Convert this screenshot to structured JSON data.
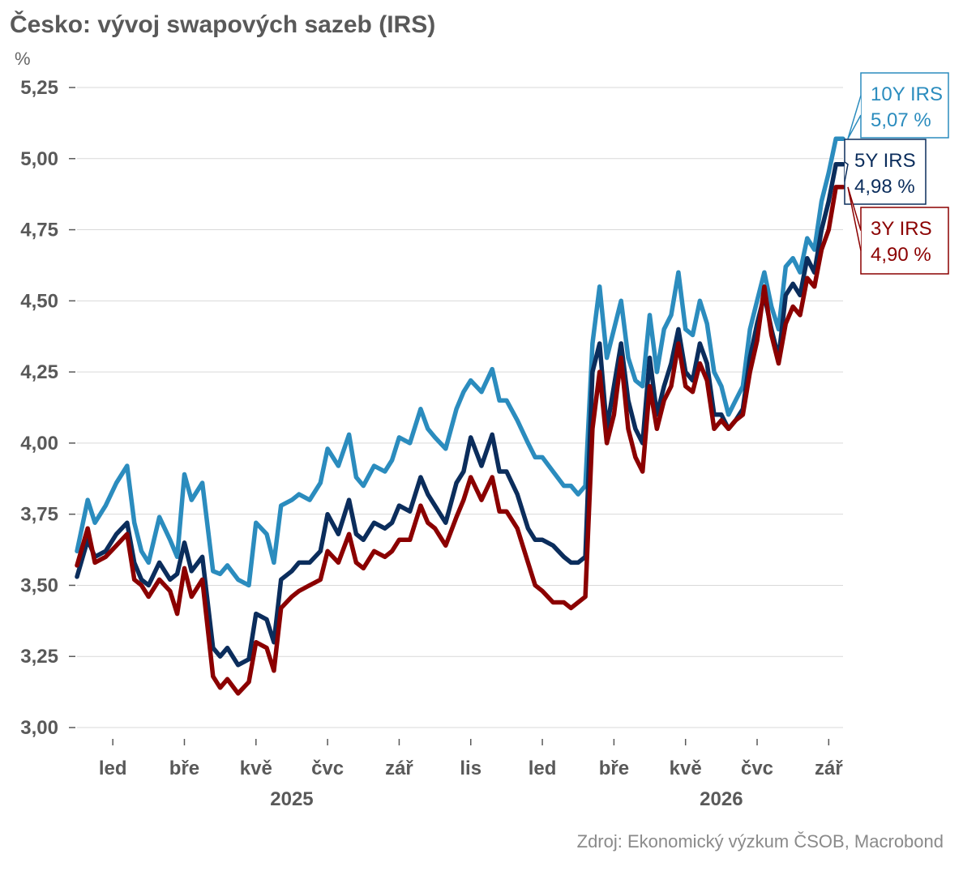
{
  "header": {
    "title": "Česko: vývoj swapových sazeb (IRS)",
    "unit": "%"
  },
  "footer": {
    "source": "Zdroj: Ekonomický výzkum ČSOB, Macrobond"
  },
  "colors": {
    "irs10": "#2b8cbe",
    "irs5": "#0b2d5c",
    "irs3": "#8b0000",
    "grid": "#d9d9d9",
    "axis": "#595959"
  },
  "chart_data": {
    "type": "line",
    "x_unit": "months since December 2024",
    "xlim": [
      0,
      21.4
    ],
    "ylim": [
      3.0,
      5.25
    ],
    "yticks": [
      3.0,
      3.25,
      3.5,
      3.75,
      4.0,
      4.25,
      4.5,
      4.75,
      5.0,
      5.25
    ],
    "ytick_labels": [
      "3,00",
      "3,25",
      "3,50",
      "3,75",
      "4,00",
      "4,25",
      "4,50",
      "4,75",
      "5,00",
      "5,25"
    ],
    "xticks": [
      {
        "x": 1.0,
        "label": "led"
      },
      {
        "x": 3.0,
        "label": "bře"
      },
      {
        "x": 5.0,
        "label": "kvě"
      },
      {
        "x": 7.0,
        "label": "čvc"
      },
      {
        "x": 9.0,
        "label": "zář"
      },
      {
        "x": 11.0,
        "label": "lis"
      },
      {
        "x": 13.0,
        "label": "led"
      },
      {
        "x": 15.0,
        "label": "bře"
      },
      {
        "x": 17.0,
        "label": "kvě"
      },
      {
        "x": 19.0,
        "label": "čvc"
      },
      {
        "x": 21.0,
        "label": "zář"
      }
    ],
    "year_labels": [
      {
        "x": 6.0,
        "label": "2025"
      },
      {
        "x": 18.0,
        "label": "2026"
      }
    ],
    "grid": true,
    "legend": "callouts at right end of lines",
    "series": [
      {
        "name": "10Y IRS",
        "label_value": "5,07 %",
        "x": [
          0.0,
          0.3,
          0.5,
          0.8,
          1.1,
          1.4,
          1.6,
          1.8,
          2.0,
          2.3,
          2.6,
          2.8,
          3.0,
          3.2,
          3.5,
          3.8,
          4.0,
          4.2,
          4.5,
          4.8,
          5.0,
          5.3,
          5.5,
          5.7,
          6.0,
          6.2,
          6.5,
          6.8,
          7.0,
          7.3,
          7.6,
          7.8,
          8.0,
          8.3,
          8.6,
          8.8,
          9.0,
          9.3,
          9.6,
          9.8,
          10.0,
          10.3,
          10.6,
          10.8,
          11.0,
          11.3,
          11.6,
          11.8,
          12.0,
          12.3,
          12.6,
          12.8,
          13.0,
          13.3,
          13.6,
          13.8,
          14.0,
          14.2,
          14.4,
          14.6,
          14.8,
          15.0,
          15.2,
          15.4,
          15.6,
          15.8,
          16.0,
          16.2,
          16.4,
          16.6,
          16.8,
          17.0,
          17.2,
          17.4,
          17.6,
          17.8,
          18.0,
          18.2,
          18.4,
          18.6,
          18.8,
          19.0,
          19.2,
          19.4,
          19.6,
          19.8,
          20.0,
          20.2,
          20.4,
          20.6,
          20.8,
          21.0,
          21.2,
          21.4
        ],
        "values": [
          3.62,
          3.8,
          3.72,
          3.78,
          3.86,
          3.92,
          3.72,
          3.62,
          3.58,
          3.74,
          3.66,
          3.6,
          3.89,
          3.8,
          3.86,
          3.55,
          3.54,
          3.57,
          3.52,
          3.5,
          3.72,
          3.68,
          3.58,
          3.78,
          3.8,
          3.82,
          3.8,
          3.86,
          3.98,
          3.92,
          4.03,
          3.88,
          3.85,
          3.92,
          3.9,
          3.94,
          4.02,
          4.0,
          4.12,
          4.05,
          4.02,
          3.98,
          4.12,
          4.18,
          4.22,
          4.18,
          4.26,
          4.15,
          4.15,
          4.08,
          4.0,
          3.95,
          3.95,
          3.9,
          3.85,
          3.85,
          3.82,
          3.85,
          4.35,
          4.55,
          4.3,
          4.4,
          4.5,
          4.3,
          4.22,
          4.2,
          4.45,
          4.25,
          4.4,
          4.45,
          4.6,
          4.4,
          4.38,
          4.5,
          4.42,
          4.25,
          4.2,
          4.1,
          4.15,
          4.2,
          4.4,
          4.5,
          4.6,
          4.48,
          4.4,
          4.62,
          4.65,
          4.6,
          4.72,
          4.68,
          4.85,
          4.95,
          5.07,
          5.07
        ]
      },
      {
        "name": "5Y IRS",
        "label_value": "4,98 %",
        "x": [
          0.0,
          0.3,
          0.5,
          0.8,
          1.1,
          1.4,
          1.6,
          1.8,
          2.0,
          2.3,
          2.6,
          2.8,
          3.0,
          3.2,
          3.5,
          3.8,
          4.0,
          4.2,
          4.5,
          4.8,
          5.0,
          5.3,
          5.5,
          5.7,
          6.0,
          6.2,
          6.5,
          6.8,
          7.0,
          7.3,
          7.6,
          7.8,
          8.0,
          8.3,
          8.6,
          8.8,
          9.0,
          9.3,
          9.6,
          9.8,
          10.0,
          10.3,
          10.6,
          10.8,
          11.0,
          11.3,
          11.6,
          11.8,
          12.0,
          12.3,
          12.6,
          12.8,
          13.0,
          13.3,
          13.6,
          13.8,
          14.0,
          14.2,
          14.4,
          14.6,
          14.8,
          15.0,
          15.2,
          15.4,
          15.6,
          15.8,
          16.0,
          16.2,
          16.4,
          16.6,
          16.8,
          17.0,
          17.2,
          17.4,
          17.6,
          17.8,
          18.0,
          18.2,
          18.4,
          18.6,
          18.8,
          19.0,
          19.2,
          19.4,
          19.6,
          19.8,
          20.0,
          20.2,
          20.4,
          20.6,
          20.8,
          21.0,
          21.2,
          21.4
        ],
        "values": [
          3.53,
          3.66,
          3.6,
          3.62,
          3.68,
          3.72,
          3.58,
          3.52,
          3.5,
          3.58,
          3.52,
          3.54,
          3.65,
          3.55,
          3.6,
          3.28,
          3.25,
          3.28,
          3.22,
          3.24,
          3.4,
          3.38,
          3.3,
          3.52,
          3.55,
          3.58,
          3.58,
          3.62,
          3.75,
          3.68,
          3.8,
          3.68,
          3.66,
          3.72,
          3.7,
          3.72,
          3.78,
          3.76,
          3.88,
          3.82,
          3.78,
          3.72,
          3.86,
          3.9,
          4.02,
          3.92,
          4.03,
          3.9,
          3.9,
          3.82,
          3.7,
          3.66,
          3.66,
          3.64,
          3.6,
          3.58,
          3.58,
          3.6,
          4.25,
          4.35,
          4.05,
          4.2,
          4.35,
          4.15,
          4.05,
          4.0,
          4.3,
          4.1,
          4.2,
          4.28,
          4.4,
          4.25,
          4.22,
          4.35,
          4.28,
          4.1,
          4.1,
          4.05,
          4.08,
          4.12,
          4.3,
          4.42,
          4.52,
          4.4,
          4.3,
          4.52,
          4.56,
          4.52,
          4.65,
          4.6,
          4.75,
          4.85,
          4.98,
          4.98
        ]
      },
      {
        "name": "3Y IRS",
        "label_value": "4,90 %",
        "x": [
          0.0,
          0.3,
          0.5,
          0.8,
          1.1,
          1.4,
          1.6,
          1.8,
          2.0,
          2.3,
          2.6,
          2.8,
          3.0,
          3.2,
          3.5,
          3.8,
          4.0,
          4.2,
          4.5,
          4.8,
          5.0,
          5.3,
          5.5,
          5.7,
          6.0,
          6.2,
          6.5,
          6.8,
          7.0,
          7.3,
          7.6,
          7.8,
          8.0,
          8.3,
          8.6,
          8.8,
          9.0,
          9.3,
          9.6,
          9.8,
          10.0,
          10.3,
          10.6,
          10.8,
          11.0,
          11.3,
          11.6,
          11.8,
          12.0,
          12.3,
          12.6,
          12.8,
          13.0,
          13.3,
          13.6,
          13.8,
          14.0,
          14.2,
          14.4,
          14.6,
          14.8,
          15.0,
          15.2,
          15.4,
          15.6,
          15.8,
          16.0,
          16.2,
          16.4,
          16.6,
          16.8,
          17.0,
          17.2,
          17.4,
          17.6,
          17.8,
          18.0,
          18.2,
          18.4,
          18.6,
          18.8,
          19.0,
          19.2,
          19.4,
          19.6,
          19.8,
          20.0,
          20.2,
          20.4,
          20.6,
          20.8,
          21.0,
          21.2,
          21.4
        ],
        "values": [
          3.57,
          3.7,
          3.58,
          3.6,
          3.64,
          3.68,
          3.52,
          3.5,
          3.46,
          3.52,
          3.48,
          3.4,
          3.56,
          3.46,
          3.52,
          3.18,
          3.14,
          3.17,
          3.12,
          3.16,
          3.3,
          3.28,
          3.2,
          3.42,
          3.46,
          3.48,
          3.5,
          3.52,
          3.62,
          3.58,
          3.68,
          3.58,
          3.56,
          3.62,
          3.6,
          3.62,
          3.66,
          3.66,
          3.78,
          3.72,
          3.7,
          3.64,
          3.74,
          3.8,
          3.88,
          3.8,
          3.88,
          3.76,
          3.76,
          3.7,
          3.58,
          3.5,
          3.48,
          3.44,
          3.44,
          3.42,
          3.44,
          3.46,
          4.05,
          4.25,
          4.0,
          4.1,
          4.3,
          4.05,
          3.95,
          3.9,
          4.2,
          4.05,
          4.15,
          4.2,
          4.35,
          4.2,
          4.18,
          4.28,
          4.22,
          4.05,
          4.08,
          4.05,
          4.08,
          4.1,
          4.25,
          4.36,
          4.55,
          4.38,
          4.28,
          4.42,
          4.48,
          4.45,
          4.58,
          4.55,
          4.68,
          4.75,
          4.9,
          4.9
        ]
      }
    ]
  }
}
